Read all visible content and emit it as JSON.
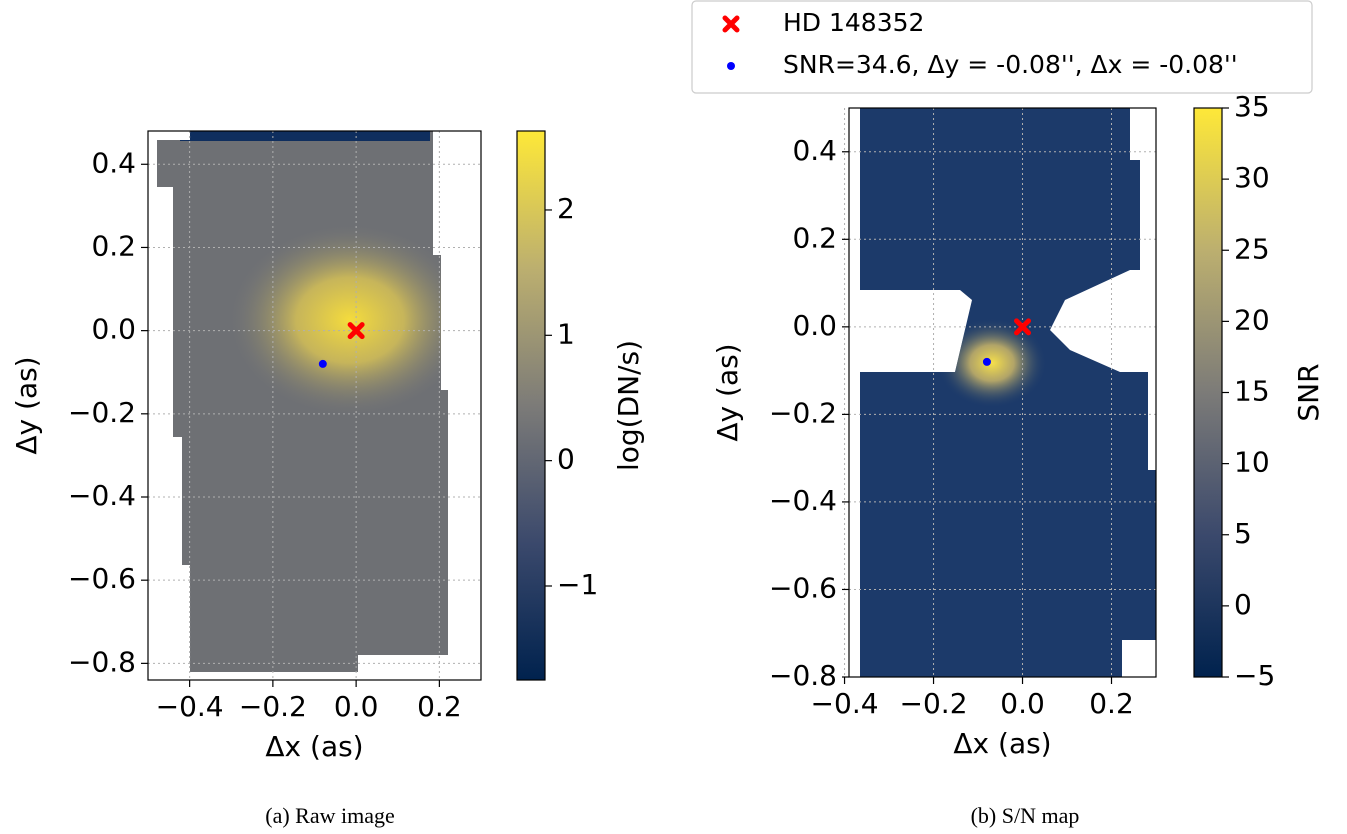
{
  "chart_data": [
    {
      "type": "heatmap",
      "caption": "(a) Raw image",
      "xlabel": "Δx (as)",
      "ylabel": "Δy (as)",
      "xlim": [
        -0.5,
        0.3
      ],
      "ylim": [
        -0.84,
        0.48
      ],
      "xticks": [
        {
          "value": -0.4,
          "label": "−0.4"
        },
        {
          "value": -0.2,
          "label": "−0.2"
        },
        {
          "value": 0,
          "label": "0.0"
        },
        0.2
      ],
      "yticks": [
        {
          "value": -0.8,
          "label": "−0.8"
        },
        {
          "value": -0.6,
          "label": "−0.6"
        },
        {
          "value": -0.4,
          "label": "−0.4"
        },
        {
          "value": -0.2,
          "label": "−0.2"
        },
        {
          "value": 0,
          "label": "0.0"
        },
        0.2,
        0.4
      ],
      "grid": true,
      "colorbar": {
        "label": "log(DN/s)",
        "lim": [
          -1.75,
          2.63
        ],
        "ticks": [
          {
            "value": -1,
            "label": "−1"
          },
          0,
          1,
          2
        ],
        "colormap": "cividis"
      },
      "series": [
        {
          "color": "#ff0000",
          "marker": "X",
          "x": [
            0
          ],
          "y": [
            0
          ]
        },
        {
          "color": "#0000ff",
          "marker": "o",
          "x": [
            -0.08
          ],
          "y": [
            -0.08
          ]
        }
      ]
    },
    {
      "type": "heatmap",
      "caption": "(b) S/N map",
      "xlabel": "Δx (as)",
      "ylabel": "Δy (as)",
      "xlim": [
        -0.39,
        0.3
      ],
      "ylim": [
        -0.8,
        0.5
      ],
      "xticks": [
        {
          "value": -0.4,
          "label": "−0.4"
        },
        {
          "value": -0.2,
          "label": "−0.2"
        },
        {
          "value": 0,
          "label": "0.0"
        },
        0.2
      ],
      "yticks": [
        {
          "value": -0.8,
          "label": "−0.8"
        },
        {
          "value": -0.6,
          "label": "−0.6"
        },
        {
          "value": -0.4,
          "label": "−0.4"
        },
        {
          "value": -0.2,
          "label": "−0.2"
        },
        {
          "value": 0,
          "label": "0.0"
        },
        0.2,
        0.4
      ],
      "grid": true,
      "colorbar": {
        "label": "SNR",
        "lim": [
          -5,
          35
        ],
        "ticks": [
          {
            "value": -5,
            "label": "−5"
          },
          0,
          5,
          10,
          15,
          20,
          25,
          30,
          35
        ],
        "colormap": "cividis"
      },
      "legend": "above",
      "series": [
        {
          "name": "HD 148352",
          "color": "#ff0000",
          "marker": "X",
          "x": [
            0
          ],
          "y": [
            0
          ]
        },
        {
          "name": "SNR=34.6, Δy = -0.08'', Δx = -0.08''",
          "color": "#0000ff",
          "marker": "o",
          "x": [
            -0.08
          ],
          "y": [
            -0.08
          ]
        }
      ]
    }
  ]
}
